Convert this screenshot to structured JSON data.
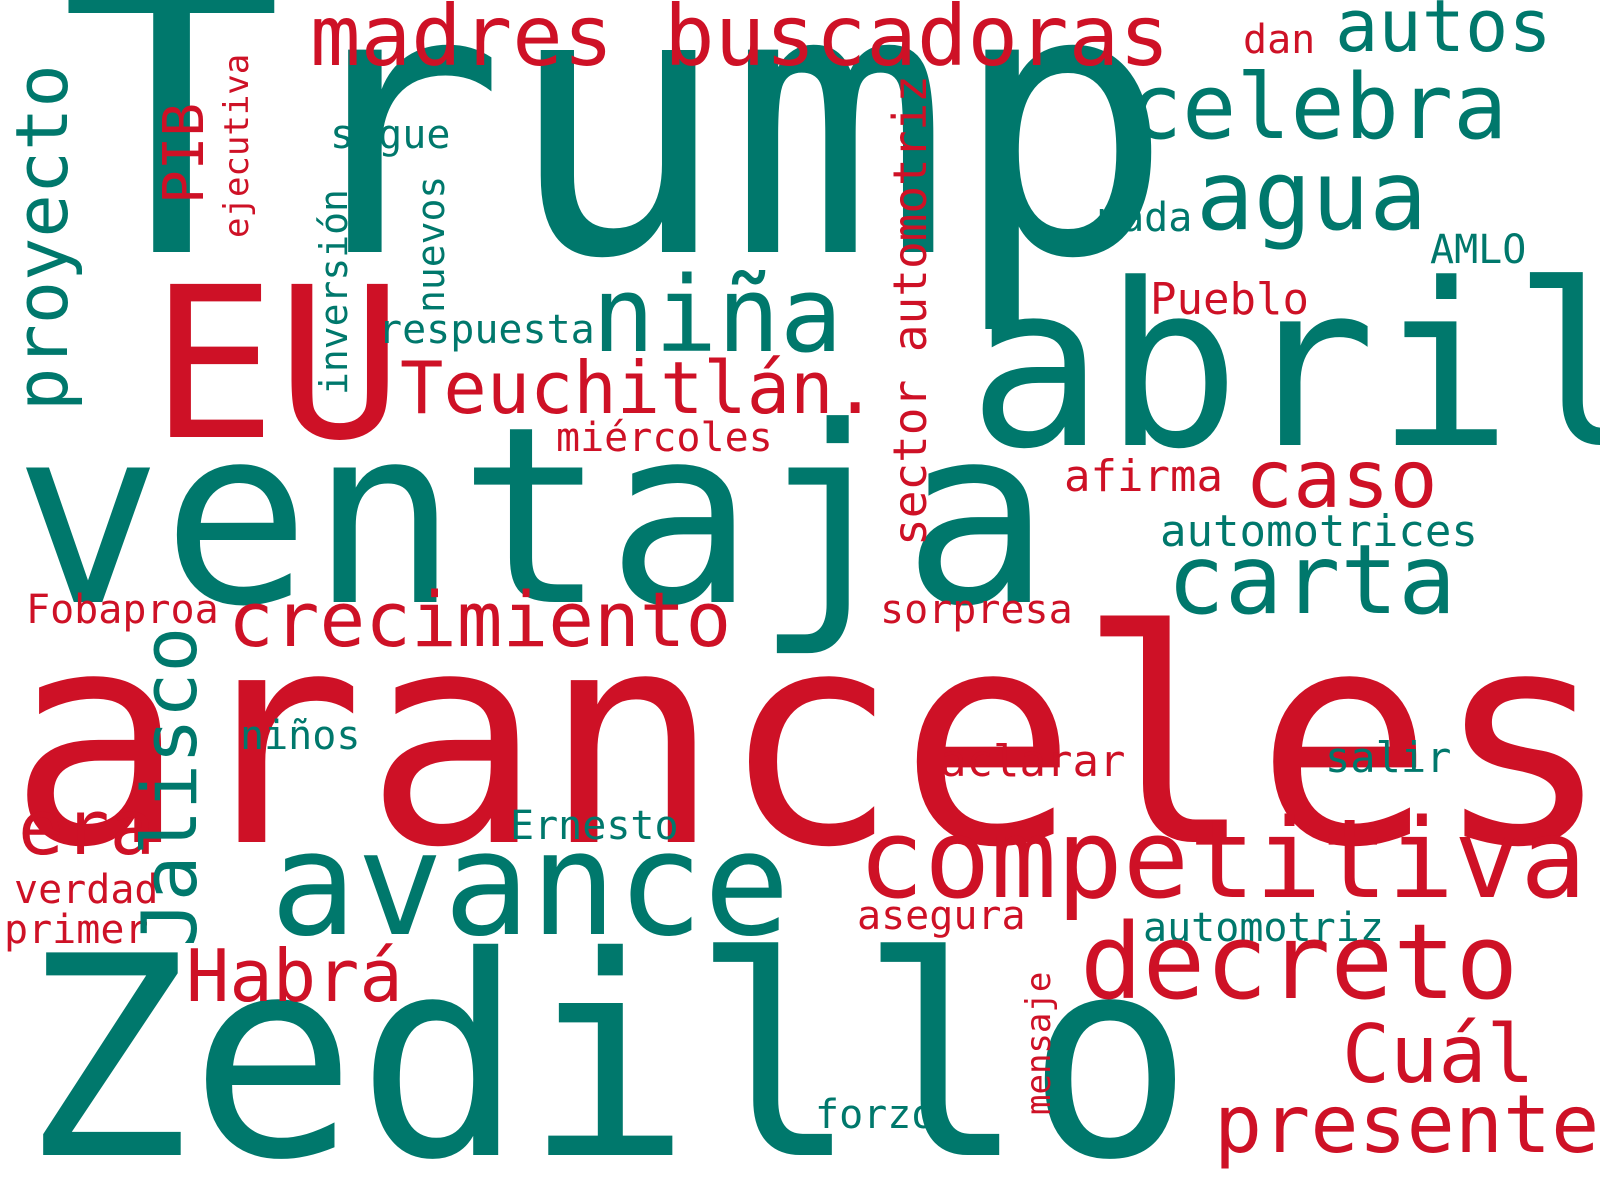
{
  "colors": {
    "green": "#00786C",
    "red": "#CE1126"
  },
  "words": [
    {
      "id": "trump",
      "text": "Trump",
      "color": "green"
    },
    {
      "id": "abril",
      "text": "abril",
      "color": "green"
    },
    {
      "id": "ventaja",
      "text": "ventaja",
      "color": "green"
    },
    {
      "id": "aranceles",
      "text": "aranceles",
      "color": "red"
    },
    {
      "id": "zedillo",
      "text": "Zedillo",
      "color": "green"
    },
    {
      "id": "eu",
      "text": "EU",
      "color": "red"
    },
    {
      "id": "madres-buscadoras",
      "text": "madres buscadoras",
      "color": "red"
    },
    {
      "id": "autos",
      "text": "autos",
      "color": "green"
    },
    {
      "id": "dan",
      "text": "dan",
      "color": "red"
    },
    {
      "id": "celebra",
      "text": "celebra",
      "color": "green"
    },
    {
      "id": "agua",
      "text": "agua",
      "color": "green"
    },
    {
      "id": "nada",
      "text": "nada",
      "color": "green"
    },
    {
      "id": "amlo",
      "text": "AMLO",
      "color": "green"
    },
    {
      "id": "pueblo",
      "text": "Pueblo",
      "color": "red"
    },
    {
      "id": "proyecto",
      "text": "proyecto",
      "color": "green"
    },
    {
      "id": "pib",
      "text": "PIB",
      "color": "red"
    },
    {
      "id": "ejecutiva",
      "text": "ejecutiva",
      "color": "red"
    },
    {
      "id": "sigue",
      "text": "sigue",
      "color": "green"
    },
    {
      "id": "inversion",
      "text": "inversión",
      "color": "green"
    },
    {
      "id": "nuevos",
      "text": "nuevos",
      "color": "green"
    },
    {
      "id": "sector-automotriz",
      "text": "sector automotriz",
      "color": "red"
    },
    {
      "id": "respuesta",
      "text": "respuesta",
      "color": "green"
    },
    {
      "id": "nina",
      "text": "niña",
      "color": "green"
    },
    {
      "id": "teuchitlan",
      "text": "Teuchitlán.",
      "color": "red"
    },
    {
      "id": "miercoles",
      "text": "miércoles",
      "color": "red"
    },
    {
      "id": "afirma",
      "text": "afirma",
      "color": "red"
    },
    {
      "id": "caso",
      "text": "caso",
      "color": "red"
    },
    {
      "id": "automotrices",
      "text": "automotrices",
      "color": "green"
    },
    {
      "id": "carta",
      "text": "carta",
      "color": "green"
    },
    {
      "id": "fobaproa",
      "text": "Fobaproa",
      "color": "red"
    },
    {
      "id": "crecimiento",
      "text": "crecimiento",
      "color": "red"
    },
    {
      "id": "sorpresa",
      "text": "sorpresa",
      "color": "red"
    },
    {
      "id": "jalisco",
      "text": "Jalisco",
      "color": "green"
    },
    {
      "id": "ninos",
      "text": "niños",
      "color": "green"
    },
    {
      "id": "aclarar",
      "text": "aclarar",
      "color": "red"
    },
    {
      "id": "salir",
      "text": "salir",
      "color": "green"
    },
    {
      "id": "era",
      "text": "era",
      "color": "red"
    },
    {
      "id": "ernesto",
      "text": "Ernesto",
      "color": "green"
    },
    {
      "id": "avance",
      "text": "avance",
      "color": "green"
    },
    {
      "id": "competitiva",
      "text": "competitiva",
      "color": "red"
    },
    {
      "id": "verdad",
      "text": "verdad",
      "color": "red"
    },
    {
      "id": "primer",
      "text": "primer",
      "color": "red"
    },
    {
      "id": "asegura",
      "text": "asegura",
      "color": "red"
    },
    {
      "id": "automotriz",
      "text": "automotriz",
      "color": "green"
    },
    {
      "id": "habra",
      "text": "Habrá",
      "color": "red"
    },
    {
      "id": "decreto",
      "text": "decreto",
      "color": "red"
    },
    {
      "id": "mensaje",
      "text": "mensaje",
      "color": "red"
    },
    {
      "id": "cual",
      "text": "Cuál",
      "color": "red"
    },
    {
      "id": "forzo",
      "text": "forzó",
      "color": "green"
    },
    {
      "id": "presente",
      "text": "presente",
      "color": "red"
    }
  ]
}
